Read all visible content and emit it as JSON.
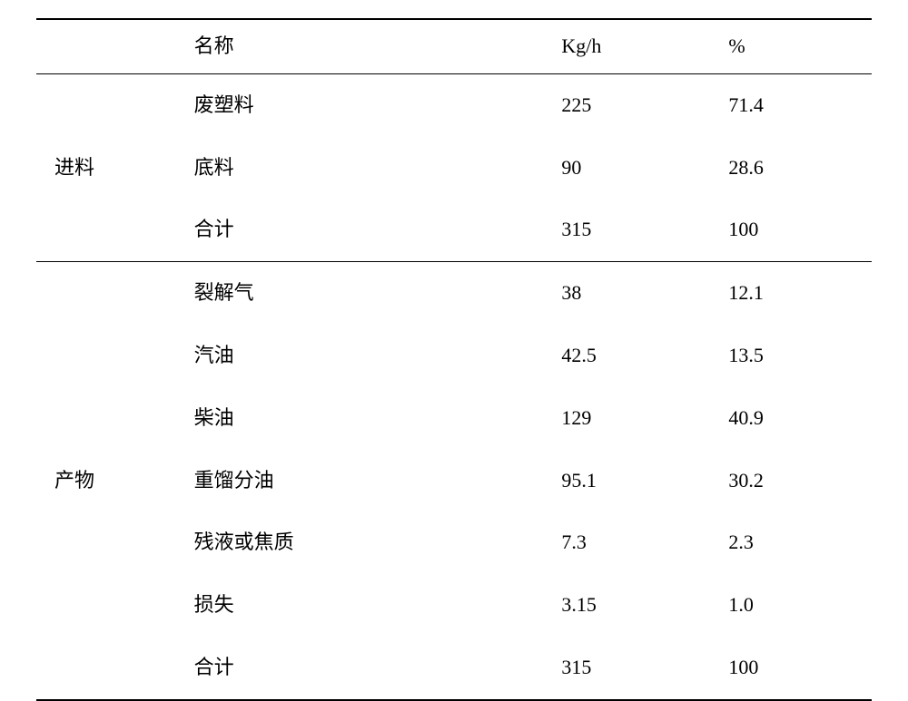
{
  "table": {
    "type": "table",
    "background_color": "#ffffff",
    "text_color": "#000000",
    "font_family": "SimSun",
    "header_fontsize": 22,
    "cell_fontsize": 22,
    "border_color": "#000000",
    "top_border_width": 2,
    "section_border_width": 1,
    "bottom_border_width": 2,
    "columns": [
      {
        "key": "group",
        "label": "",
        "width_pct": 18
      },
      {
        "key": "name",
        "label": "名称",
        "width_pct": 44
      },
      {
        "key": "rate",
        "label": "Kg/h",
        "width_pct": 20
      },
      {
        "key": "percent",
        "label": "%",
        "width_pct": 18
      }
    ],
    "sections": [
      {
        "group_label": "进料",
        "rows": [
          {
            "name": "废塑料",
            "rate": "225",
            "percent": "71.4"
          },
          {
            "name": "底料",
            "rate": "90",
            "percent": "28.6"
          },
          {
            "name": "合计",
            "rate": "315",
            "percent": "100"
          }
        ]
      },
      {
        "group_label": "产物",
        "rows": [
          {
            "name": "裂解气",
            "rate": "38",
            "percent": "12.1"
          },
          {
            "name": "汽油",
            "rate": "42.5",
            "percent": "13.5"
          },
          {
            "name": "柴油",
            "rate": "129",
            "percent": "40.9"
          },
          {
            "name": "重馏分油",
            "rate": "95.1",
            "percent": "30.2"
          },
          {
            "name": "残液或焦质",
            "rate": "7.3",
            "percent": "2.3"
          },
          {
            "name": "损失",
            "rate": "3.15",
            "percent": "1.0"
          },
          {
            "name": "合计",
            "rate": "315",
            "percent": "100"
          }
        ]
      }
    ]
  }
}
